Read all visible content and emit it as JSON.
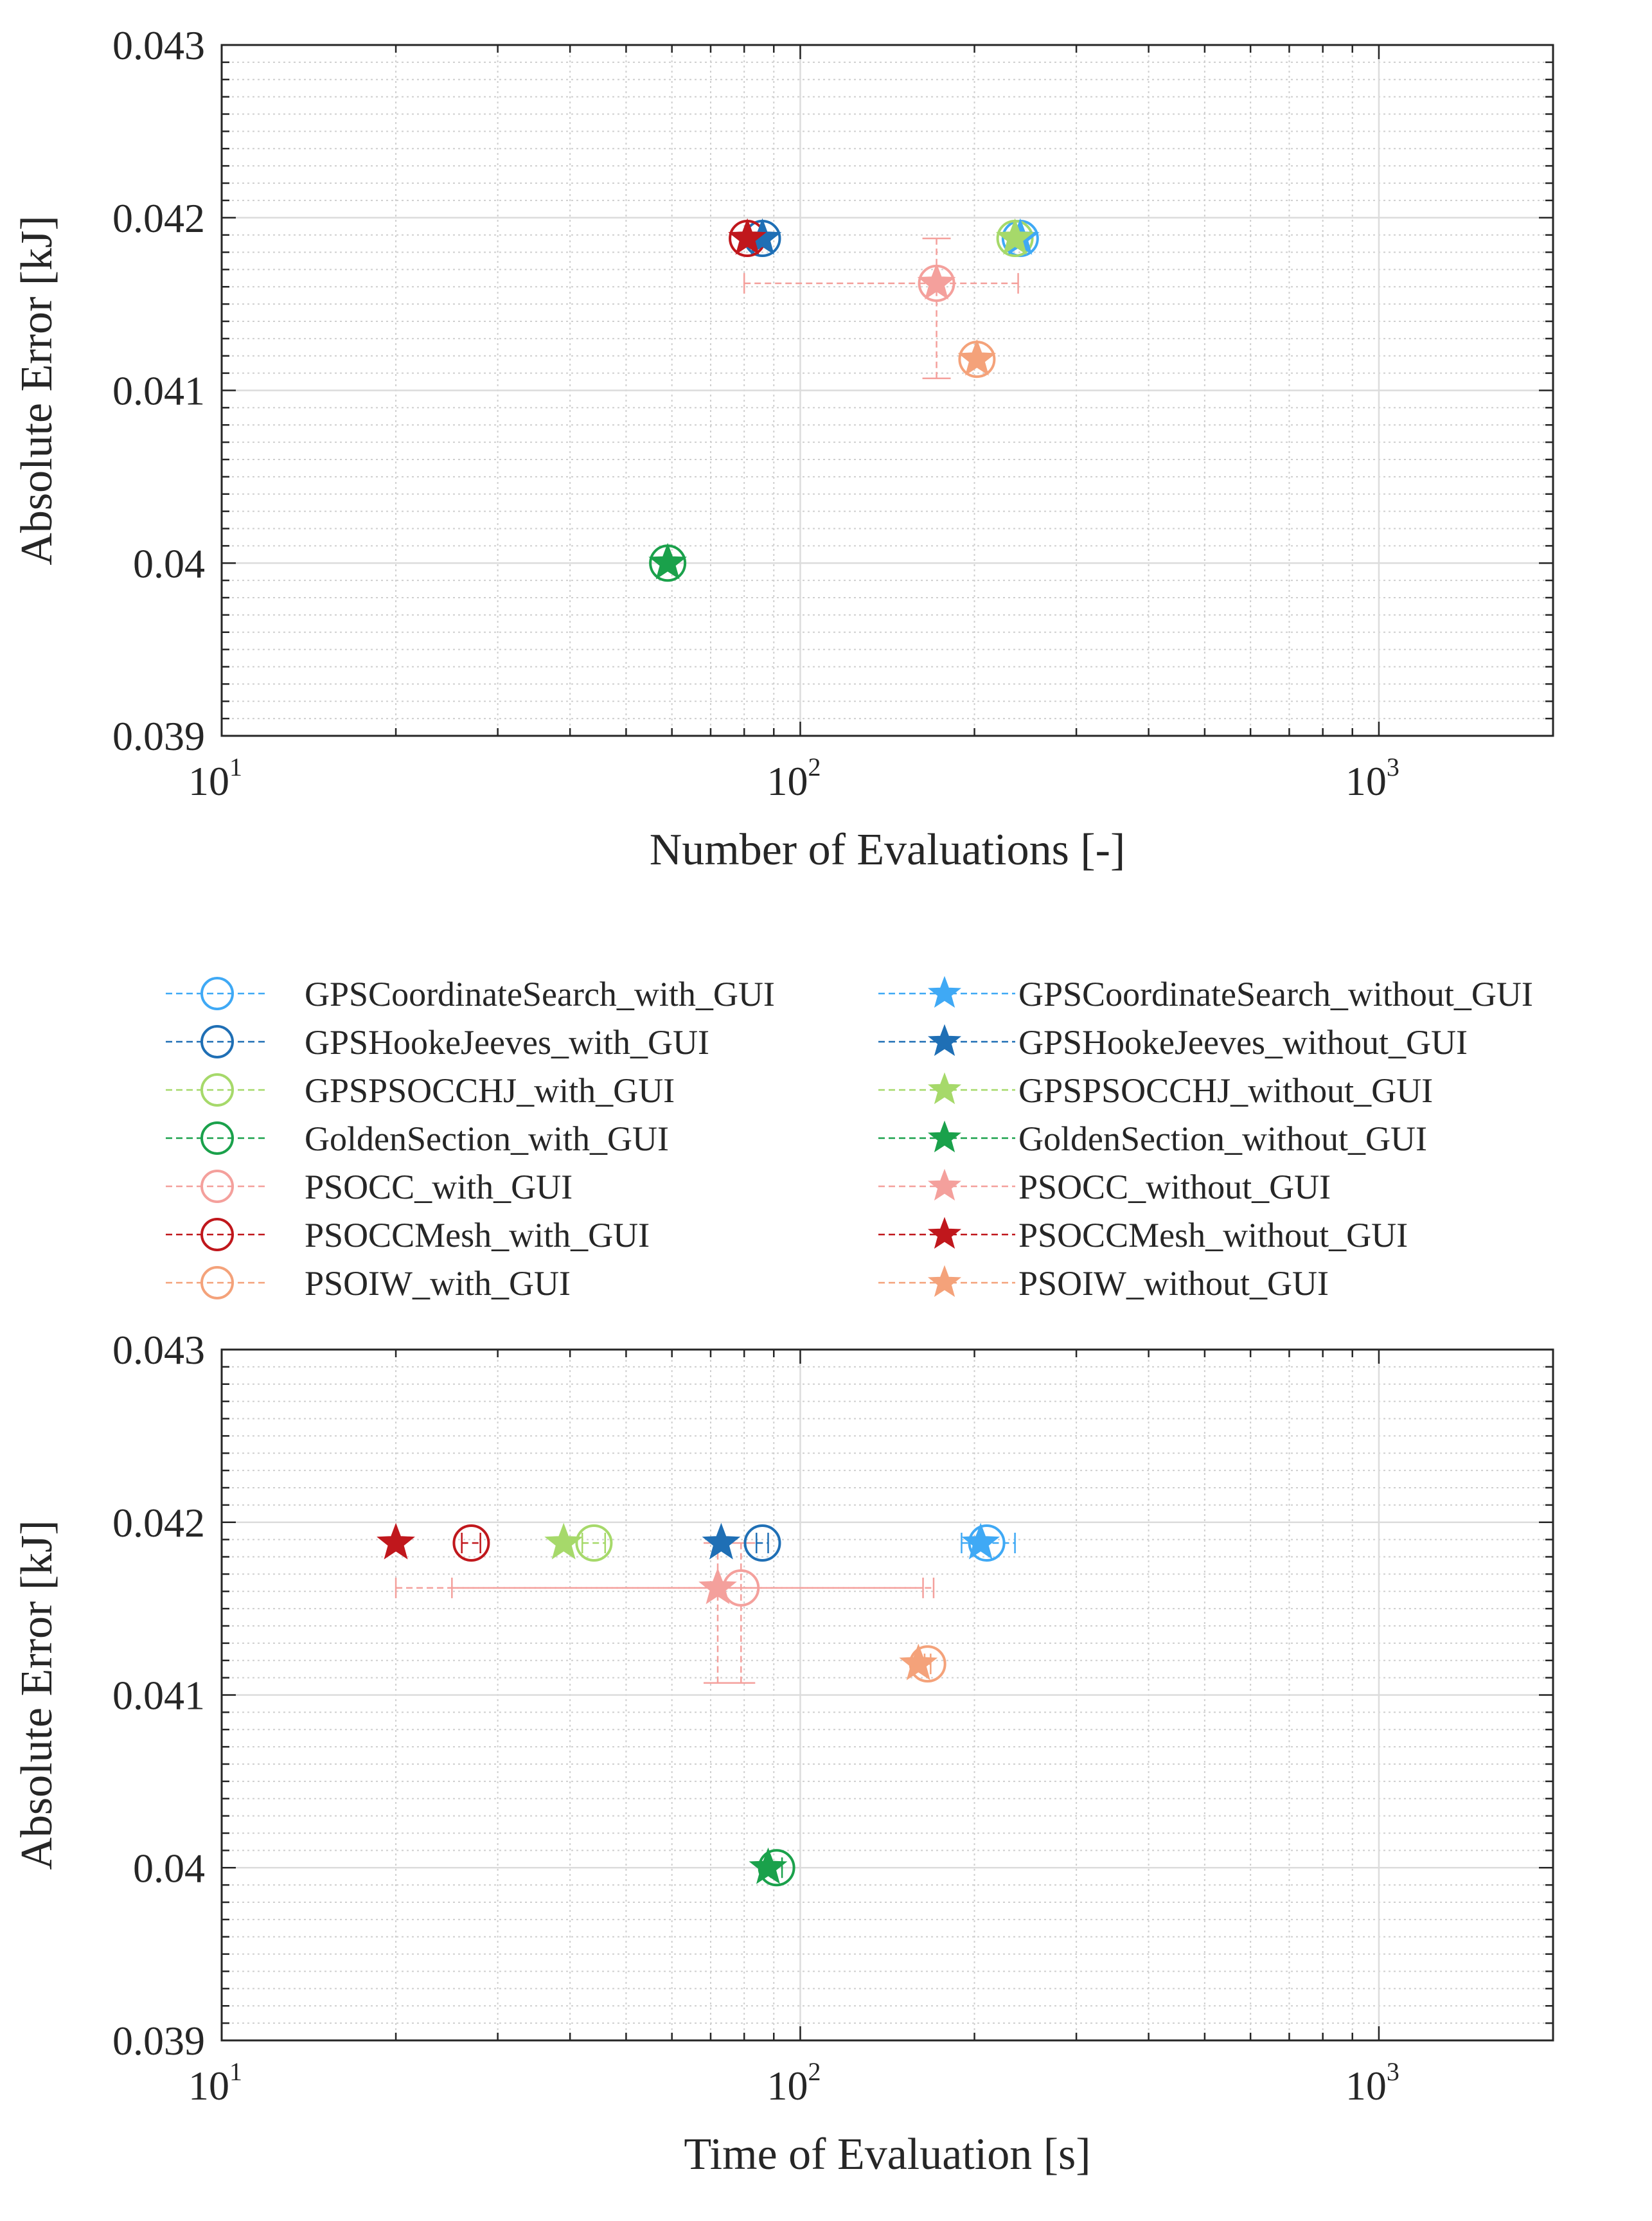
{
  "chart_data": [
    {
      "type": "scatter",
      "title": "",
      "xlabel": "Number of Evaluations [-]",
      "ylabel": "Absolute Error [kJ]",
      "xscale": "log",
      "xlim": [
        10,
        2000
      ],
      "ylim": [
        0.039,
        0.043
      ],
      "xticks": [
        {
          "base": "10",
          "exp": "1"
        },
        {
          "base": "10",
          "exp": "2"
        },
        {
          "base": "10",
          "exp": "3"
        }
      ],
      "yticks": [
        "0.039",
        "0.04",
        "0.041",
        "0.042",
        "0.043"
      ],
      "grid": true,
      "series": [
        {
          "name": "GPSCoordinateSearch_with_GUI",
          "marker": "circle",
          "color": "#3fa9f5",
          "x": 240,
          "y": 0.04188
        },
        {
          "name": "GPSHookeJeeves_with_GUI",
          "marker": "circle",
          "color": "#1f6fb5",
          "x": 86,
          "y": 0.04188
        },
        {
          "name": "GPSPSOCCHJ_with_GUI",
          "marker": "circle",
          "color": "#a6d96a",
          "x": 235,
          "y": 0.04188
        },
        {
          "name": "GoldenSection_with_GUI",
          "marker": "circle",
          "color": "#1aa14b",
          "x": 59,
          "y": 0.04
        },
        {
          "name": "PSOCC_with_GUI",
          "marker": "circle",
          "color": "#f4a09c",
          "x": 172,
          "y": 0.04162,
          "xerr": [
            80,
            238
          ],
          "yerr": [
            0.04107,
            0.04188
          ]
        },
        {
          "name": "PSOCCMesh_with_GUI",
          "marker": "circle",
          "color": "#c0171c",
          "x": 81,
          "y": 0.04188
        },
        {
          "name": "PSOIW_with_GUI",
          "marker": "circle",
          "color": "#f4a27a",
          "x": 202,
          "y": 0.04118
        },
        {
          "name": "GPSCoordinateSearch_without_GUI",
          "marker": "star",
          "color": "#3fa9f5",
          "x": 240,
          "y": 0.04188
        },
        {
          "name": "GPSHookeJeeves_without_GUI",
          "marker": "star",
          "color": "#1f6fb5",
          "x": 86,
          "y": 0.04188
        },
        {
          "name": "GPSPSOCCHJ_without_GUI",
          "marker": "star",
          "color": "#a6d96a",
          "x": 235,
          "y": 0.04188
        },
        {
          "name": "GoldenSection_without_GUI",
          "marker": "star",
          "color": "#1aa14b",
          "x": 59,
          "y": 0.04
        },
        {
          "name": "PSOCC_without_GUI",
          "marker": "star",
          "color": "#f4a09c",
          "x": 172,
          "y": 0.04162
        },
        {
          "name": "PSOCCMesh_without_GUI",
          "marker": "star",
          "color": "#c0171c",
          "x": 81,
          "y": 0.04188
        },
        {
          "name": "PSOIW_without_GUI",
          "marker": "star",
          "color": "#f4a27a",
          "x": 202,
          "y": 0.04118
        }
      ]
    },
    {
      "type": "scatter",
      "title": "",
      "xlabel": "Time of Evaluation [s]",
      "ylabel": "Absolute Error  [kJ]",
      "xscale": "log",
      "xlim": [
        10,
        2000
      ],
      "ylim": [
        0.039,
        0.043
      ],
      "xticks": [
        {
          "base": "10",
          "exp": "1"
        },
        {
          "base": "10",
          "exp": "2"
        },
        {
          "base": "10",
          "exp": "3"
        }
      ],
      "yticks": [
        "0.039",
        "0.04",
        "0.041",
        "0.042",
        "0.043"
      ],
      "grid": true,
      "series": [
        {
          "name": "GPSCoordinateSearch_with_GUI",
          "marker": "circle",
          "color": "#3fa9f5",
          "x": 210,
          "y": 0.04188,
          "xerr": [
            190,
            235
          ]
        },
        {
          "name": "GPSHookeJeeves_with_GUI",
          "marker": "circle",
          "color": "#1f6fb5",
          "x": 86,
          "y": 0.04188,
          "xerr": [
            84,
            88
          ]
        },
        {
          "name": "GPSPSOCCHJ_with_GUI",
          "marker": "circle",
          "color": "#a6d96a",
          "x": 44,
          "y": 0.04188,
          "xerr": [
            42,
            46
          ]
        },
        {
          "name": "GoldenSection_with_GUI",
          "marker": "circle",
          "color": "#1aa14b",
          "x": 91,
          "y": 0.04,
          "xerr": [
            89,
            93
          ]
        },
        {
          "name": "PSOCC_with_GUI",
          "marker": "circle",
          "color": "#f4a09c",
          "x": 79,
          "y": 0.04162,
          "xerr": [
            25,
            170
          ],
          "yerr": [
            0.04107,
            0.04188
          ]
        },
        {
          "name": "PSOCCMesh_with_GUI",
          "marker": "circle",
          "color": "#c0171c",
          "x": 27,
          "y": 0.04188,
          "xerr": [
            26,
            28
          ]
        },
        {
          "name": "PSOIW_with_GUI",
          "marker": "circle",
          "color": "#f4a27a",
          "x": 166,
          "y": 0.04118,
          "xerr": [
            164,
            168
          ]
        },
        {
          "name": "GPSCoordinateSearch_without_GUI",
          "marker": "star",
          "color": "#3fa9f5",
          "x": 205,
          "y": 0.04188
        },
        {
          "name": "GPSHookeJeeves_without_GUI",
          "marker": "star",
          "color": "#1f6fb5",
          "x": 73,
          "y": 0.04188
        },
        {
          "name": "GPSPSOCCHJ_without_GUI",
          "marker": "star",
          "color": "#a6d96a",
          "x": 39,
          "y": 0.04188
        },
        {
          "name": "GoldenSection_without_GUI",
          "marker": "star",
          "color": "#1aa14b",
          "x": 88,
          "y": 0.04
        },
        {
          "name": "PSOCC_without_GUI",
          "marker": "star",
          "color": "#f4a09c",
          "x": 72,
          "y": 0.04162,
          "xerr": [
            20,
            163
          ],
          "yerr": [
            0.04107,
            0.04188
          ]
        },
        {
          "name": "PSOCCMesh_without_GUI",
          "marker": "star",
          "color": "#c0171c",
          "x": 20,
          "y": 0.04188
        },
        {
          "name": "PSOIW_without_GUI",
          "marker": "star",
          "color": "#f4a27a",
          "x": 160,
          "y": 0.04118
        }
      ]
    }
  ],
  "legend": {
    "placement": "between-plots",
    "left_column": [
      {
        "label": "GPSCoordinateSearch_with_GUI",
        "marker": "circle",
        "color": "#3fa9f5"
      },
      {
        "label": "GPSHookeJeeves_with_GUI",
        "marker": "circle",
        "color": "#1f6fb5"
      },
      {
        "label": "GPSPSOCCHJ_with_GUI",
        "marker": "circle",
        "color": "#a6d96a"
      },
      {
        "label": "GoldenSection_with_GUI",
        "marker": "circle",
        "color": "#1aa14b"
      },
      {
        "label": "PSOCC_with_GUI",
        "marker": "circle",
        "color": "#f4a09c"
      },
      {
        "label": "PSOCCMesh_with_GUI",
        "marker": "circle",
        "color": "#c0171c"
      },
      {
        "label": "PSOIW_with_GUI",
        "marker": "circle",
        "color": "#f4a27a"
      }
    ],
    "right_column": [
      {
        "label": "GPSCoordinateSearch_without_GUI",
        "marker": "star",
        "color": "#3fa9f5"
      },
      {
        "label": "GPSHookeJeeves_without_GUI",
        "marker": "star",
        "color": "#1f6fb5"
      },
      {
        "label": "GPSPSOCCHJ_without_GUI",
        "marker": "star",
        "color": "#a6d96a"
      },
      {
        "label": "GoldenSection_without_GUI",
        "marker": "star",
        "color": "#1aa14b"
      },
      {
        "label": "PSOCC_without_GUI",
        "marker": "star",
        "color": "#f4a09c"
      },
      {
        "label": "PSOCCMesh_without_GUI",
        "marker": "star",
        "color": "#c0171c"
      },
      {
        "label": "PSOIW_without_GUI",
        "marker": "star",
        "color": "#f4a27a"
      }
    ]
  }
}
